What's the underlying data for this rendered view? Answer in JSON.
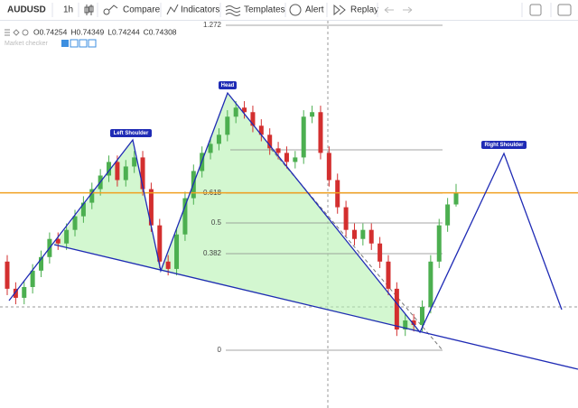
{
  "toolbar": {
    "symbol": "AUDUSD",
    "interval": "1h",
    "items": [
      "Compare",
      "Indicators",
      "Templates",
      "Alert",
      "Replay"
    ]
  },
  "legend": {
    "ohlc": [
      "O0.74254",
      "H0.74349",
      "L0.74244",
      "C0.74308"
    ],
    "indicator": "Market checker"
  },
  "chart_data": {
    "type": "candlestick",
    "ylim": [
      0.7331,
      0.7511
    ],
    "up_color": "#4caf50",
    "down_color": "#d32f2f",
    "price_line_color": "#f0a020",
    "open": [
      0.73989,
      0.73863,
      0.73821,
      0.73871,
      0.73947,
      0.7401,
      0.74094,
      0.74073,
      0.74136,
      0.74199,
      0.74262,
      0.74325,
      0.74388,
      0.74451,
      0.74367,
      0.7443,
      0.74472,
      0.74325,
      0.74157,
      0.73989,
      0.73955,
      0.74115,
      0.74283,
      0.74409,
      0.74493,
      0.74535,
      0.74577,
      0.74661,
      0.74703,
      0.74682,
      0.74619,
      0.74577,
      0.74514,
      0.74493,
      0.74451,
      0.74472,
      0.74661,
      0.74682,
      0.74493,
      0.74367,
      0.74241,
      0.74136,
      0.74094,
      0.74136,
      0.74073,
      0.73989,
      0.73863,
      0.73674,
      0.73716,
      0.73695,
      0.73779,
      0.73989,
      0.74157,
      0.74254
    ],
    "high": [
      0.74019,
      0.73893,
      0.73901,
      0.73977,
      0.7404,
      0.74124,
      0.74124,
      0.74166,
      0.74229,
      0.74292,
      0.74355,
      0.74418,
      0.74481,
      0.74481,
      0.7446,
      0.74502,
      0.74502,
      0.74355,
      0.74187,
      0.74019,
      0.74145,
      0.74313,
      0.74439,
      0.74523,
      0.74565,
      0.74607,
      0.74691,
      0.74733,
      0.74733,
      0.74712,
      0.74649,
      0.74607,
      0.74544,
      0.74523,
      0.74502,
      0.74691,
      0.74712,
      0.74712,
      0.74523,
      0.74397,
      0.74271,
      0.74166,
      0.74166,
      0.74166,
      0.74103,
      0.74019,
      0.73893,
      0.73746,
      0.73746,
      0.73809,
      0.74019,
      0.74187,
      0.74284,
      0.74349
    ],
    "low": [
      0.73833,
      0.73791,
      0.73791,
      0.73841,
      0.73917,
      0.7398,
      0.74043,
      0.74043,
      0.74106,
      0.74169,
      0.74232,
      0.74295,
      0.74358,
      0.74337,
      0.74337,
      0.744,
      0.74295,
      0.74127,
      0.73959,
      0.73925,
      0.73925,
      0.74085,
      0.74253,
      0.74379,
      0.74463,
      0.74505,
      0.74547,
      0.74631,
      0.74652,
      0.74589,
      0.74547,
      0.74484,
      0.74463,
      0.74421,
      0.74421,
      0.74442,
      0.74631,
      0.74463,
      0.74337,
      0.74211,
      0.74106,
      0.74064,
      0.74064,
      0.74043,
      0.73959,
      0.73833,
      0.73644,
      0.73644,
      0.73665,
      0.73665,
      0.73749,
      0.73959,
      0.74127,
      0.74244
    ],
    "close": [
      0.73863,
      0.73821,
      0.73871,
      0.73947,
      0.7401,
      0.74094,
      0.74073,
      0.74136,
      0.74199,
      0.74262,
      0.74325,
      0.74388,
      0.74451,
      0.74367,
      0.7443,
      0.74472,
      0.74325,
      0.74157,
      0.73989,
      0.73955,
      0.74115,
      0.74283,
      0.74409,
      0.74493,
      0.74535,
      0.74577,
      0.74661,
      0.74703,
      0.74682,
      0.74619,
      0.74577,
      0.74514,
      0.74493,
      0.74451,
      0.74472,
      0.74661,
      0.74682,
      0.74493,
      0.74367,
      0.74241,
      0.74136,
      0.74094,
      0.74136,
      0.74073,
      0.73989,
      0.73863,
      0.73674,
      0.73716,
      0.73695,
      0.73779,
      0.73989,
      0.74157,
      0.74254,
      0.74308
    ]
  },
  "fibonacci": {
    "levels": [
      "1.272",
      "0.618",
      "0.5",
      "0.382",
      "0"
    ]
  },
  "pattern": {
    "labels": [
      "Left Shoulder",
      "Head",
      "Right Shoulder"
    ]
  }
}
